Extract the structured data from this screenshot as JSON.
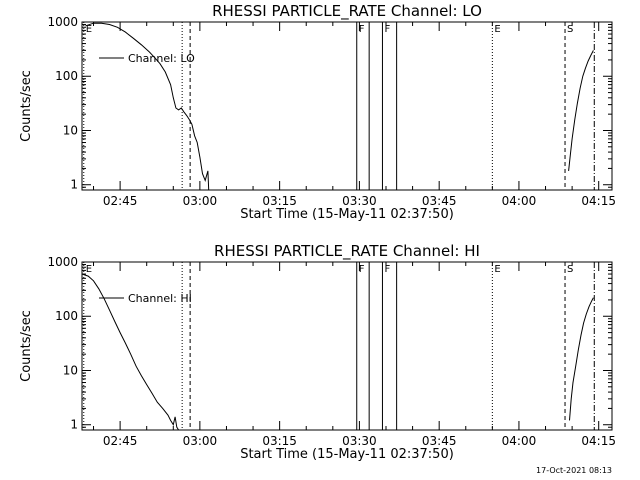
{
  "footer_timestamp": "17-Oct-2021 08:13",
  "chart_data": [
    {
      "type": "line",
      "title": "RHESSI PARTICLE_RATE Channel: LO",
      "xlabel": "Start Time (15-May-11 02:37:50)",
      "ylabel": "Counts/sec",
      "yscale": "log",
      "xlim": [
        "02:37:50",
        "04:17:30"
      ],
      "ylim": [
        0.8,
        1000
      ],
      "xticks": [
        "02:45",
        "03:00",
        "03:15",
        "03:30",
        "03:45",
        "04:00",
        "04:15"
      ],
      "yticks": [
        "1",
        "10",
        "100",
        "1000"
      ],
      "legend": {
        "label": "Channel: LO",
        "position": "top-left"
      },
      "series": [
        {
          "name": "Channel: LO",
          "segments": [
            {
              "x": [
                "02:38:30",
                "02:40:00",
                "02:41:30",
                "02:43:00",
                "02:44:30",
                "02:46:00",
                "02:47:30",
                "02:49:00",
                "02:50:30",
                "02:51:30",
                "02:52:30",
                "02:53:30",
                "02:54:30",
                "02:55:00",
                "02:55:30",
                "02:56:00",
                "02:56:30",
                "02:57:00",
                "02:57:30",
                "02:58:00",
                "02:58:30",
                "02:59:00",
                "02:59:30",
                "03:00:00",
                "03:00:30",
                "03:01:00",
                "03:01:30",
                "03:01:40"
              ],
              "y": [
                850,
                950,
                950,
                900,
                800,
                650,
                500,
                380,
                280,
                220,
                170,
                120,
                70,
                40,
                26,
                24,
                26,
                22,
                19,
                16,
                13,
                8,
                6,
                3.2,
                1.6,
                1.2,
                1.8,
                0.8
              ]
            },
            {
              "x": [
                "04:09:20",
                "04:09:40",
                "04:10:00",
                "04:10:30",
                "04:11:00",
                "04:11:30",
                "04:12:00",
                "04:12:30",
                "04:13:00",
                "04:13:30",
                "04:14:00"
              ],
              "y": [
                1.8,
                3.5,
                7,
                16,
                32,
                60,
                100,
                140,
                190,
                240,
                300
              ]
            }
          ]
        }
      ],
      "markers": [
        {
          "label": "E",
          "x": "02:38:10",
          "style": "dotted"
        },
        {
          "label": "",
          "x": "02:56:40",
          "style": "dotted"
        },
        {
          "label": "",
          "x": "02:58:10",
          "style": "dashed"
        },
        {
          "label": "F",
          "x": "03:29:30",
          "style": "solid"
        },
        {
          "label": "",
          "x": "03:31:50",
          "style": "solid"
        },
        {
          "label": "F",
          "x": "03:34:20",
          "style": "solid"
        },
        {
          "label": "",
          "x": "03:37:00",
          "style": "solid"
        },
        {
          "label": "E",
          "x": "03:55:00",
          "style": "dotted"
        },
        {
          "label": "S",
          "x": "04:08:40",
          "style": "dashed"
        },
        {
          "label": "",
          "x": "04:14:10",
          "style": "dash-dot"
        }
      ]
    },
    {
      "type": "line",
      "title": "RHESSI PARTICLE_RATE Channel: HI",
      "xlabel": "Start Time (15-May-11 02:37:50)",
      "ylabel": "Counts/sec",
      "yscale": "log",
      "xlim": [
        "02:37:50",
        "04:17:30"
      ],
      "ylim": [
        0.8,
        1000
      ],
      "xticks": [
        "02:45",
        "03:00",
        "03:15",
        "03:30",
        "03:45",
        "04:00",
        "04:15"
      ],
      "yticks": [
        "1",
        "10",
        "100",
        "1000"
      ],
      "legend": {
        "label": "Channel: HI",
        "position": "top-left"
      },
      "series": [
        {
          "name": "Channel: HI",
          "segments": [
            {
              "x": [
                "02:37:50",
                "02:39:00",
                "02:40:00",
                "02:41:00",
                "02:42:00",
                "02:43:00",
                "02:44:00",
                "02:45:00",
                "02:46:00",
                "02:47:00",
                "02:48:00",
                "02:49:00",
                "02:50:00",
                "02:51:00",
                "02:52:00",
                "02:53:00",
                "02:54:00",
                "02:54:30",
                "02:55:00",
                "02:55:20",
                "02:55:40",
                "02:56:00"
              ],
              "y": [
                600,
                550,
                450,
                320,
                210,
                130,
                80,
                50,
                32,
                20,
                12,
                8,
                5.5,
                3.8,
                2.6,
                2.0,
                1.5,
                1.2,
                1.0,
                1.4,
                0.9,
                0.8
              ]
            },
            {
              "x": [
                "04:09:30",
                "04:09:50",
                "04:10:10",
                "04:10:40",
                "04:11:10",
                "04:11:40",
                "04:12:10",
                "04:12:40",
                "04:13:10",
                "04:13:40",
                "04:14:00"
              ],
              "y": [
                1.2,
                3,
                6,
                12,
                24,
                45,
                75,
                110,
                150,
                190,
                220
              ]
            }
          ]
        }
      ],
      "markers": [
        {
          "label": "E",
          "x": "02:38:10",
          "style": "dotted"
        },
        {
          "label": "",
          "x": "02:56:40",
          "style": "dotted"
        },
        {
          "label": "",
          "x": "02:58:10",
          "style": "dashed"
        },
        {
          "label": "F",
          "x": "03:29:30",
          "style": "solid"
        },
        {
          "label": "",
          "x": "03:31:50",
          "style": "solid"
        },
        {
          "label": "F",
          "x": "03:34:20",
          "style": "solid"
        },
        {
          "label": "",
          "x": "03:37:00",
          "style": "solid"
        },
        {
          "label": "E",
          "x": "03:55:00",
          "style": "dotted"
        },
        {
          "label": "S",
          "x": "04:08:40",
          "style": "dashed"
        },
        {
          "label": "",
          "x": "04:14:10",
          "style": "dash-dot"
        }
      ]
    }
  ]
}
